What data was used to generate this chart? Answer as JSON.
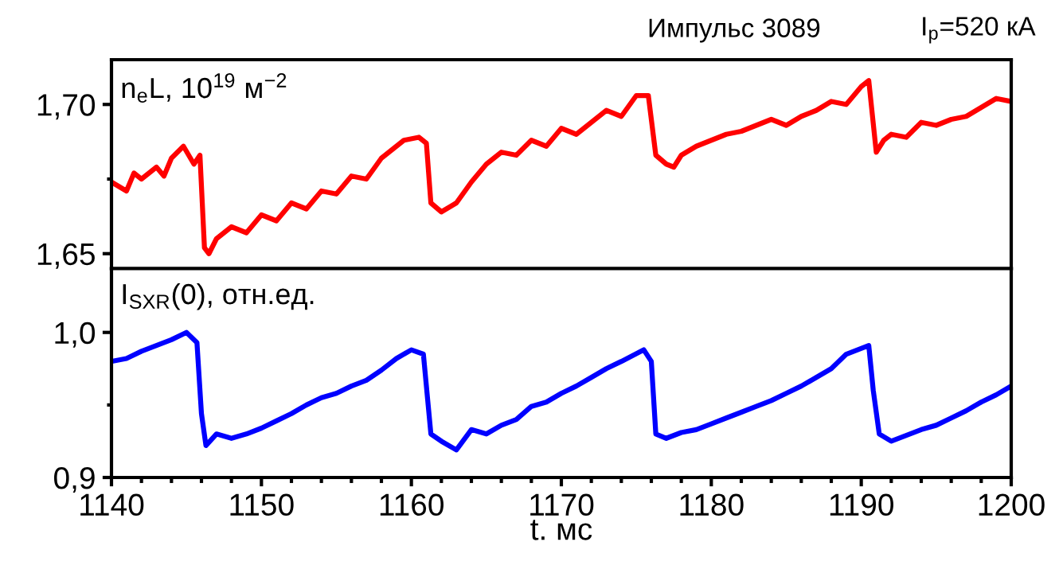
{
  "chart_data": [
    {
      "type": "line",
      "title": "Импульс 3089",
      "subtitle": "I$_{p}$=520 кА",
      "ylabel": "n$_{e}$L, 10$^{19}$ м$^{−2}$",
      "tick_labels": "y",
      "grid": false,
      "legend": false,
      "xlim": [
        1140,
        1200
      ],
      "ylim": [
        1.645,
        1.715
      ],
      "yticks": [
        {
          "value": 1.65,
          "label": "1,65"
        },
        {
          "value": 1.675,
          "label": null
        },
        {
          "value": 1.7,
          "label": "1,70"
        }
      ],
      "series": [
        {
          "color": "#ff0000",
          "x": [
            1140,
            1141,
            1141.5,
            1142,
            1143,
            1143.5,
            1144,
            1144.8,
            1145.5,
            1145.9,
            1146.2,
            1146.5,
            1147,
            1148,
            1149,
            1150,
            1151,
            1152,
            1153,
            1154,
            1155,
            1156,
            1157,
            1158,
            1159.5,
            1160.5,
            1161,
            1161.3,
            1162,
            1163,
            1164,
            1165,
            1166,
            1167,
            1168,
            1169,
            1170,
            1171,
            1172,
            1173,
            1174,
            1175,
            1175.8,
            1176.3,
            1177,
            1177.5,
            1178,
            1179,
            1180,
            1181,
            1182,
            1183,
            1184,
            1185,
            1186,
            1187,
            1188,
            1189,
            1190,
            1190.5,
            1191,
            1191.5,
            1192,
            1193,
            1194,
            1195,
            1196,
            1197,
            1198,
            1199,
            1200
          ],
          "values": [
            1.674,
            1.671,
            1.677,
            1.675,
            1.679,
            1.676,
            1.682,
            1.686,
            1.68,
            1.683,
            1.652,
            1.65,
            1.655,
            1.659,
            1.657,
            1.663,
            1.661,
            1.667,
            1.665,
            1.671,
            1.67,
            1.676,
            1.675,
            1.682,
            1.688,
            1.689,
            1.687,
            1.667,
            1.664,
            1.667,
            1.674,
            1.68,
            1.684,
            1.683,
            1.688,
            1.686,
            1.692,
            1.69,
            1.694,
            1.698,
            1.696,
            1.703,
            1.703,
            1.683,
            1.68,
            1.679,
            1.683,
            1.686,
            1.688,
            1.69,
            1.691,
            1.693,
            1.695,
            1.693,
            1.696,
            1.698,
            1.701,
            1.7,
            1.706,
            1.708,
            1.684,
            1.688,
            1.69,
            1.689,
            1.694,
            1.693,
            1.695,
            1.696,
            1.699,
            1.702,
            1.701
          ]
        }
      ]
    },
    {
      "type": "line",
      "ylabel": "I$_{SXR}$(0), отн.ед.",
      "xlabel": "t. мс",
      "grid": false,
      "legend": false,
      "xlim": [
        1140,
        1200
      ],
      "xticks": [
        1140,
        {
          "value": 1142,
          "label": null
        },
        {
          "value": 1144,
          "label": null
        },
        {
          "value": 1146,
          "label": null
        },
        {
          "value": 1148,
          "label": null
        },
        1150,
        {
          "value": 1152,
          "label": null
        },
        {
          "value": 1154,
          "label": null
        },
        {
          "value": 1156,
          "label": null
        },
        {
          "value": 1158,
          "label": null
        },
        1160,
        {
          "value": 1162,
          "label": null
        },
        {
          "value": 1164,
          "label": null
        },
        {
          "value": 1166,
          "label": null
        },
        {
          "value": 1168,
          "label": null
        },
        1170,
        {
          "value": 1172,
          "label": null
        },
        {
          "value": 1174,
          "label": null
        },
        {
          "value": 1176,
          "label": null
        },
        {
          "value": 1178,
          "label": null
        },
        1180,
        {
          "value": 1182,
          "label": null
        },
        {
          "value": 1184,
          "label": null
        },
        {
          "value": 1186,
          "label": null
        },
        {
          "value": 1188,
          "label": null
        },
        1190,
        {
          "value": 1192,
          "label": null
        },
        {
          "value": 1194,
          "label": null
        },
        {
          "value": 1196,
          "label": null
        },
        {
          "value": 1198,
          "label": null
        },
        1200
      ],
      "ylim": [
        0.9,
        1.044
      ],
      "yticks": [
        {
          "value": 0.9,
          "label": "0,9"
        },
        {
          "value": 0.95,
          "label": null
        },
        {
          "value": 1.0,
          "label": "1,0"
        }
      ],
      "series": [
        {
          "color": "#0000ff",
          "x": [
            1140,
            1141,
            1142,
            1143,
            1144,
            1145,
            1145.7,
            1146,
            1146.3,
            1147,
            1148,
            1149,
            1150,
            1151,
            1152,
            1153,
            1154,
            1155,
            1156,
            1157,
            1158,
            1159,
            1160,
            1160.8,
            1161.3,
            1162,
            1163,
            1164,
            1165,
            1166,
            1167,
            1168,
            1169,
            1170,
            1171,
            1172,
            1173,
            1174,
            1175.5,
            1176,
            1176.3,
            1177,
            1178,
            1179,
            1180,
            1181,
            1182,
            1183,
            1184,
            1185,
            1186,
            1187,
            1188,
            1189,
            1190.5,
            1190.8,
            1191.2,
            1192,
            1193,
            1194,
            1195,
            1196,
            1197,
            1198,
            1199,
            1200
          ],
          "values": [
            0.98,
            0.982,
            0.987,
            0.991,
            0.995,
            1.0,
            0.993,
            0.944,
            0.922,
            0.93,
            0.927,
            0.93,
            0.934,
            0.939,
            0.944,
            0.95,
            0.955,
            0.958,
            0.963,
            0.967,
            0.974,
            0.982,
            0.988,
            0.985,
            0.93,
            0.925,
            0.919,
            0.933,
            0.93,
            0.936,
            0.94,
            0.949,
            0.952,
            0.958,
            0.963,
            0.969,
            0.975,
            0.98,
            0.988,
            0.98,
            0.93,
            0.927,
            0.931,
            0.933,
            0.937,
            0.941,
            0.945,
            0.949,
            0.953,
            0.958,
            0.963,
            0.969,
            0.975,
            0.985,
            0.991,
            0.96,
            0.93,
            0.925,
            0.929,
            0.933,
            0.936,
            0.941,
            0.946,
            0.952,
            0.957,
            0.963
          ]
        }
      ]
    }
  ]
}
